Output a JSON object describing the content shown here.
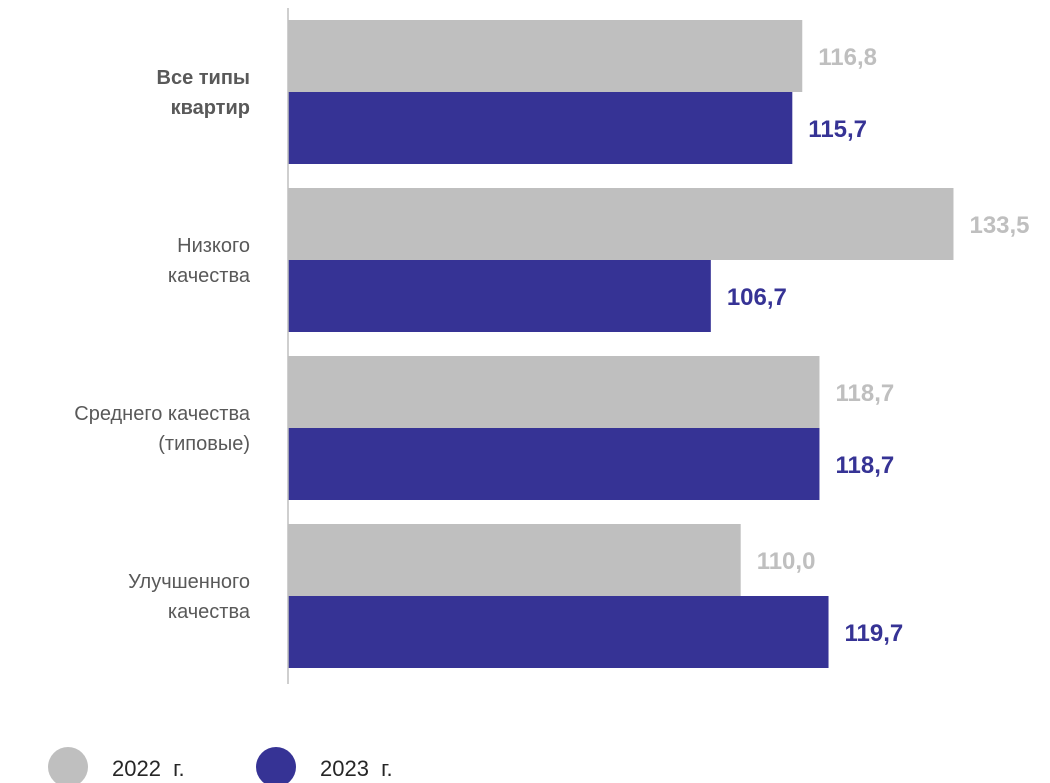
{
  "chart_data": {
    "type": "bar",
    "orientation": "horizontal",
    "categories": [
      [
        "Все типы",
        "квартир"
      ],
      [
        "Низкого",
        "качества"
      ],
      [
        "Среднего качества",
        "(типовые)"
      ],
      [
        "Улучшенного",
        "качества"
      ]
    ],
    "bold_categories": [
      0
    ],
    "series": [
      {
        "name": "2022  г.",
        "color": "#bfbfbf",
        "values": [
          116.8,
          133.5,
          118.7,
          110.0
        ],
        "labels": [
          "116,8",
          "133,5",
          "118,7",
          "110,0"
        ]
      },
      {
        "name": "2023  г.",
        "color": "#363395",
        "values": [
          115.7,
          106.7,
          118.7,
          119.7
        ],
        "labels": [
          "115,7",
          "106,7",
          "118,7",
          "119,7"
        ]
      }
    ],
    "xlim": [
      60,
      134
    ],
    "axis_labels_visible": false,
    "grid": false,
    "legend_position": "bottom-left"
  }
}
